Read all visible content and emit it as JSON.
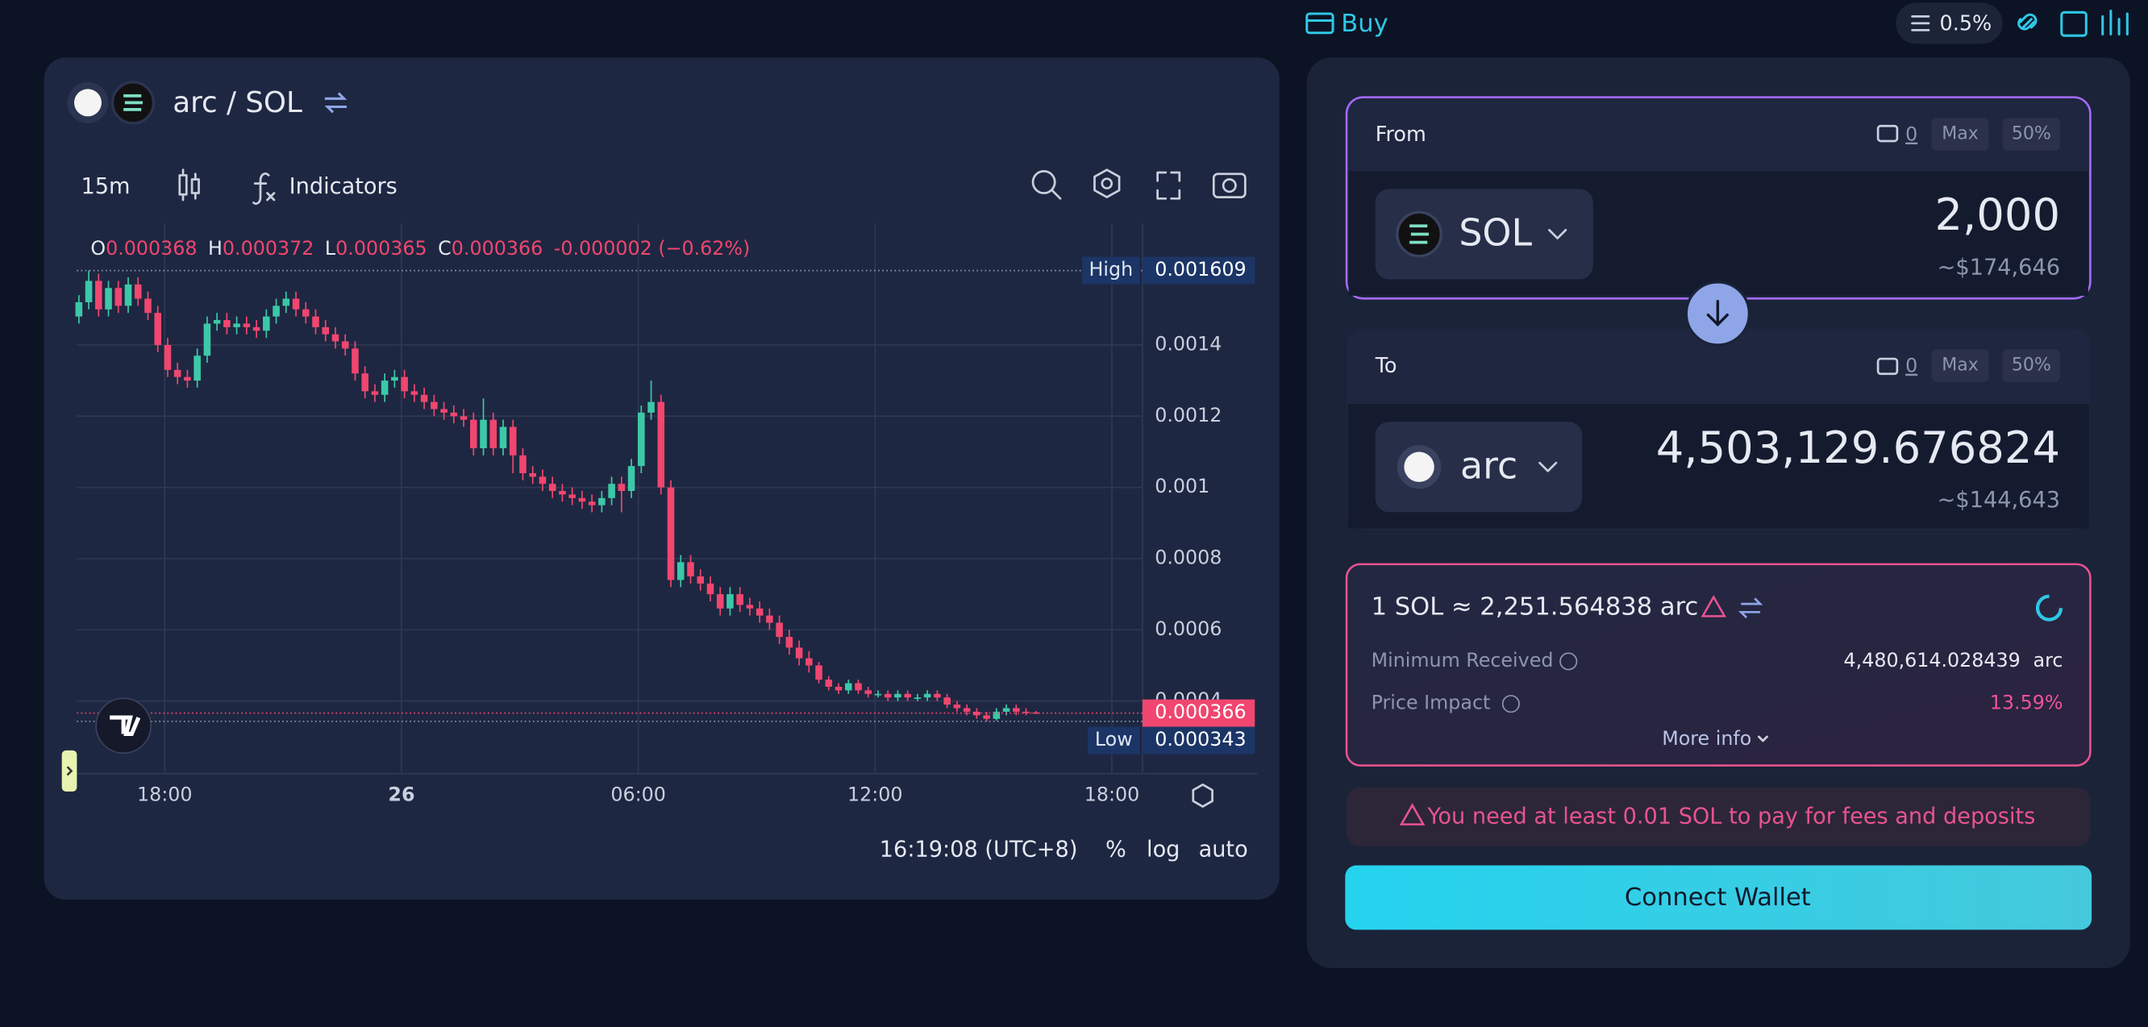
{
  "header": {
    "buy": "Buy",
    "slippage": "0.5%"
  },
  "chart_panel": {
    "pair": "arc / SOL",
    "interval": "15m",
    "indicators": "Indicators",
    "ohlc_legend": [
      {
        "label": "O",
        "value": "0.000368"
      },
      {
        "label": "H",
        "value": "0.000372"
      },
      {
        "label": "L",
        "value": "0.000365"
      },
      {
        "label": "C",
        "value": "0.000366"
      }
    ],
    "change": "-0.000002 (−0.62%)",
    "clock": "16:19:08 (UTC+8)",
    "percent": "%",
    "log": "log",
    "auto": "auto",
    "chart_data": {
      "type": "candlestick",
      "up_color": "#3cc8a8",
      "down_color": "#f0466f",
      "grid": true,
      "xlim": [
        -0.2,
        107.8
      ],
      "xticks": [
        {
          "value": 8.7,
          "label": "18:00"
        },
        {
          "value": 32.7,
          "label": "26"
        },
        {
          "value": 56.7,
          "label": "06:00"
        },
        {
          "value": 80.7,
          "label": "12:00"
        },
        {
          "value": 104.7,
          "label": "18:00"
        }
      ],
      "ylim": [
        0.000196,
        0.001742
      ],
      "yticks": [
        0.0004,
        0.0006,
        0.0008,
        0.001,
        0.0012,
        0.0014
      ],
      "high_marker": {
        "label": "High",
        "value": 0.001609
      },
      "low_marker": {
        "label": "Low",
        "value": 0.000343
      },
      "last_price": 0.000366,
      "open": [
        0.00148,
        0.00152,
        0.00158,
        0.0015,
        0.00156,
        0.00151,
        0.00157,
        0.00153,
        0.00149,
        0.0014,
        0.00133,
        0.00131,
        0.0013,
        0.00137,
        0.00146,
        0.00147,
        0.00145,
        0.00146,
        0.00145,
        0.00144,
        0.00148,
        0.00151,
        0.00153,
        0.0015,
        0.00148,
        0.00145,
        0.00143,
        0.00141,
        0.00139,
        0.00132,
        0.00127,
        0.00126,
        0.0013,
        0.00131,
        0.00127,
        0.00126,
        0.00124,
        0.00122,
        0.00121,
        0.0012,
        0.00119,
        0.00111,
        0.00119,
        0.00111,
        0.00117,
        0.00109,
        0.00104,
        0.00103,
        0.00101,
        0.00099,
        0.00098,
        0.00097,
        0.00096,
        0.00095,
        0.00097,
        0.00101,
        0.00099,
        0.00106,
        0.00121,
        0.00124,
        0.001,
        0.00074,
        0.00079,
        0.00075,
        0.00073,
        0.0007,
        0.00066,
        0.0007,
        0.00067,
        0.00066,
        0.00064,
        0.00062,
        0.00058,
        0.00055,
        0.00052,
        0.0005,
        0.00046,
        0.00044,
        0.00043,
        0.00045,
        0.00043,
        0.00042,
        0.00042,
        0.00041,
        0.00042,
        0.00041,
        0.00041,
        0.00042,
        0.00041,
        0.00039,
        0.00038,
        0.00037,
        0.00036,
        0.00035,
        0.00037,
        0.00038,
        0.00037,
        0.000368
      ],
      "high": [
        0.00154,
        0.001609,
        0.0016,
        0.00158,
        0.00158,
        0.00159,
        0.00159,
        0.00155,
        0.00151,
        0.00142,
        0.00135,
        0.00133,
        0.00139,
        0.00148,
        0.00149,
        0.00149,
        0.00148,
        0.00148,
        0.00147,
        0.0015,
        0.00153,
        0.00155,
        0.00155,
        0.00152,
        0.0015,
        0.00147,
        0.00145,
        0.00143,
        0.00141,
        0.00134,
        0.00129,
        0.00132,
        0.00133,
        0.00133,
        0.00129,
        0.00128,
        0.00126,
        0.00124,
        0.00123,
        0.00122,
        0.00121,
        0.00125,
        0.00121,
        0.00119,
        0.00119,
        0.00111,
        0.00106,
        0.00105,
        0.00103,
        0.00101,
        0.001,
        0.00099,
        0.00098,
        0.00099,
        0.00103,
        0.00103,
        0.00108,
        0.00123,
        0.0013,
        0.00126,
        0.00102,
        0.00081,
        0.00081,
        0.00077,
        0.00075,
        0.00072,
        0.00072,
        0.00072,
        0.00069,
        0.00068,
        0.00066,
        0.00064,
        0.0006,
        0.00057,
        0.00054,
        0.00051,
        0.00047,
        0.00045,
        0.00046,
        0.00046,
        0.00044,
        0.00043,
        0.00043,
        0.00043,
        0.00043,
        0.00042,
        0.00043,
        0.00043,
        0.00042,
        0.0004,
        0.00039,
        0.00038,
        0.00037,
        0.00038,
        0.00039,
        0.00039,
        0.00038,
        0.000372
      ],
      "low": [
        0.00146,
        0.0015,
        0.00148,
        0.00148,
        0.00149,
        0.00149,
        0.00151,
        0.00147,
        0.00138,
        0.00131,
        0.00129,
        0.00128,
        0.00128,
        0.00135,
        0.00144,
        0.00143,
        0.00143,
        0.00143,
        0.00142,
        0.00142,
        0.00146,
        0.00149,
        0.00148,
        0.00146,
        0.00143,
        0.00141,
        0.00139,
        0.00137,
        0.0013,
        0.00125,
        0.00124,
        0.00124,
        0.00128,
        0.00125,
        0.00124,
        0.00122,
        0.0012,
        0.00119,
        0.00118,
        0.00117,
        0.00109,
        0.00109,
        0.00109,
        0.00109,
        0.00104,
        0.00102,
        0.00101,
        0.00099,
        0.00097,
        0.00096,
        0.00095,
        0.00094,
        0.00093,
        0.00093,
        0.00095,
        0.00093,
        0.00097,
        0.00104,
        0.00119,
        0.00098,
        0.00072,
        0.00072,
        0.00073,
        0.00071,
        0.00068,
        0.00064,
        0.00064,
        0.00065,
        0.00064,
        0.00062,
        0.0006,
        0.00056,
        0.00053,
        0.0005,
        0.00048,
        0.00045,
        0.00043,
        0.00042,
        0.00042,
        0.00042,
        0.00041,
        0.00041,
        0.0004,
        0.0004,
        0.0004,
        0.0004,
        0.0004,
        0.0004,
        0.00038,
        0.00037,
        0.00036,
        0.00035,
        0.000343,
        0.000345,
        0.00036,
        0.00036,
        0.00036,
        0.000365
      ],
      "close": [
        0.00152,
        0.00158,
        0.0015,
        0.00156,
        0.00151,
        0.00157,
        0.00153,
        0.00149,
        0.0014,
        0.00133,
        0.00131,
        0.0013,
        0.00137,
        0.00146,
        0.00147,
        0.00145,
        0.00146,
        0.00145,
        0.00144,
        0.00148,
        0.00151,
        0.00153,
        0.0015,
        0.00148,
        0.00145,
        0.00143,
        0.00141,
        0.00139,
        0.00132,
        0.00127,
        0.00126,
        0.0013,
        0.00131,
        0.00127,
        0.00126,
        0.00124,
        0.00122,
        0.00121,
        0.0012,
        0.00119,
        0.00111,
        0.00119,
        0.00111,
        0.00117,
        0.00109,
        0.00104,
        0.00103,
        0.00101,
        0.00099,
        0.00098,
        0.00097,
        0.00096,
        0.00095,
        0.00097,
        0.00101,
        0.00099,
        0.00106,
        0.00121,
        0.00124,
        0.001,
        0.00074,
        0.00079,
        0.00075,
        0.00073,
        0.0007,
        0.00066,
        0.0007,
        0.00067,
        0.00066,
        0.00064,
        0.00062,
        0.00058,
        0.00055,
        0.00052,
        0.0005,
        0.00046,
        0.00044,
        0.00043,
        0.00045,
        0.00043,
        0.00042,
        0.00042,
        0.00041,
        0.00042,
        0.00041,
        0.00041,
        0.00042,
        0.00041,
        0.00039,
        0.00038,
        0.00037,
        0.00036,
        0.00035,
        0.00037,
        0.00038,
        0.00037,
        0.000368,
        0.000366
      ]
    }
  },
  "swap": {
    "from": {
      "label": "From",
      "balance": "0",
      "max": "Max",
      "half": "50%",
      "token": "SOL",
      "amount": "2,000",
      "usd": "~$174,646"
    },
    "to": {
      "label": "To",
      "balance": "0",
      "max": "Max",
      "half": "50%",
      "token": "arc",
      "amount": "4,503,129.676824",
      "usd": "~$144,643"
    },
    "rate": "1 SOL ≈ 2,251.564838 arc",
    "minimum_received": {
      "label": "Minimum Received",
      "value": "4,480,614.028439",
      "unit": "arc"
    },
    "price_impact": {
      "label": "Price Impact",
      "value": "13.59%"
    },
    "more_info": "More info",
    "warning": "You need at least 0.01 SOL to pay for fees and deposits",
    "button": "Connect Wallet"
  }
}
